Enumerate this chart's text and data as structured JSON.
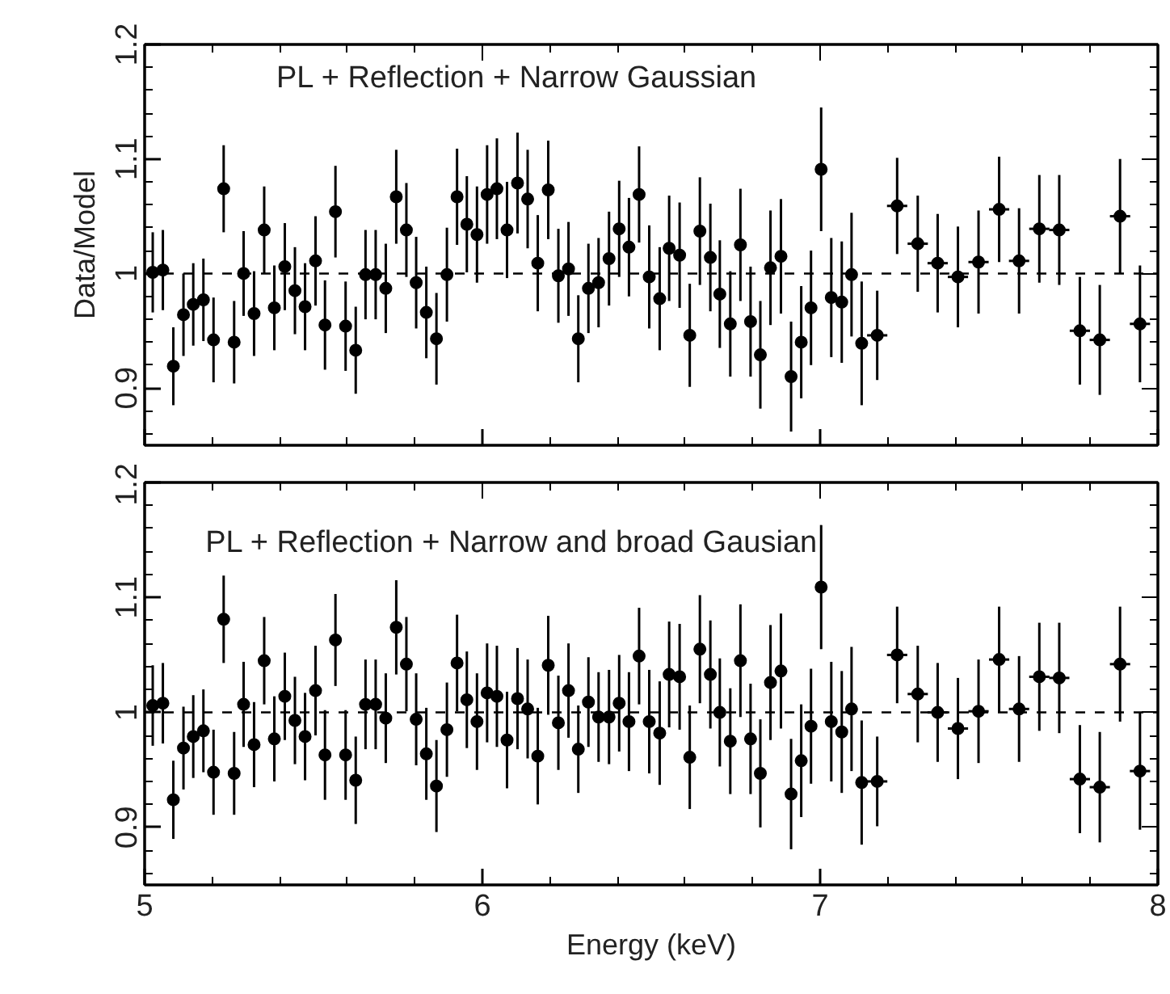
{
  "chart_data": [
    {
      "type": "scatter",
      "ylabel": "Data/Model",
      "annotations": [
        "PL + Reflection + Narrow Gaussian"
      ],
      "x": [
        5.024,
        5.054,
        5.085,
        5.115,
        5.144,
        5.174,
        5.204,
        5.234,
        5.265,
        5.293,
        5.324,
        5.354,
        5.384,
        5.415,
        5.445,
        5.475,
        5.506,
        5.534,
        5.565,
        5.595,
        5.625,
        5.654,
        5.684,
        5.714,
        5.745,
        5.775,
        5.804,
        5.834,
        5.864,
        5.895,
        5.925,
        5.954,
        5.984,
        6.014,
        6.043,
        6.073,
        6.104,
        6.134,
        6.164,
        6.195,
        6.225,
        6.255,
        6.284,
        6.314,
        6.344,
        6.375,
        6.405,
        6.434,
        6.464,
        6.494,
        6.525,
        6.553,
        6.584,
        6.614,
        6.644,
        6.675,
        6.703,
        6.734,
        6.764,
        6.794,
        6.823,
        6.853,
        6.884,
        6.914,
        6.944,
        6.973,
        7.003,
        7.033,
        7.064,
        7.093,
        7.123,
        7.169,
        7.228,
        7.289,
        7.348,
        7.408,
        7.469,
        7.53,
        7.589,
        7.649,
        7.708,
        7.769,
        7.828,
        7.888,
        7.947
      ],
      "series": [
        {
          "color": "#000000",
          "values": [
            1.001,
            1.003,
            0.919,
            0.964,
            0.973,
            0.977,
            0.942,
            1.074,
            0.94,
            1.0,
            0.965,
            1.038,
            0.97,
            1.006,
            0.985,
            0.971,
            1.011,
            0.955,
            1.054,
            0.954,
            0.933,
            0.999,
            0.999,
            0.987,
            1.067,
            1.038,
            0.992,
            0.966,
            0.943,
            0.999,
            1.067,
            1.043,
            1.034,
            1.069,
            1.074,
            1.038,
            1.079,
            1.065,
            1.009,
            1.073,
            0.998,
            1.004,
            0.943,
            0.987,
            0.992,
            1.013,
            1.039,
            1.023,
            1.069,
            0.997,
            0.978,
            1.022,
            1.016,
            0.946,
            1.037,
            1.014,
            0.982,
            0.956,
            1.025,
            0.958,
            0.929,
            1.005,
            1.015,
            0.91,
            0.94,
            0.97,
            1.091,
            0.979,
            0.975,
            0.999,
            0.939,
            0.946,
            1.059,
            1.026,
            1.009,
            0.997,
            1.01,
            1.056,
            1.011,
            1.039,
            1.038,
            0.95,
            0.942,
            1.05,
            0.956
          ],
          "errors": [
            0.035,
            0.035,
            0.034,
            0.036,
            0.036,
            0.036,
            0.037,
            0.038,
            0.036,
            0.037,
            0.037,
            0.038,
            0.037,
            0.038,
            0.038,
            0.038,
            0.039,
            0.039,
            0.04,
            0.039,
            0.038,
            0.039,
            0.039,
            0.039,
            0.041,
            0.041,
            0.04,
            0.04,
            0.04,
            0.041,
            0.042,
            0.042,
            0.042,
            0.043,
            0.044,
            0.042,
            0.044,
            0.043,
            0.042,
            0.043,
            0.041,
            0.041,
            0.038,
            0.039,
            0.039,
            0.041,
            0.042,
            0.043,
            0.042,
            0.045,
            0.045,
            0.046,
            0.046,
            0.045,
            0.047,
            0.047,
            0.047,
            0.046,
            0.049,
            0.048,
            0.047,
            0.05,
            0.05,
            0.048,
            0.049,
            0.05,
            0.054,
            0.052,
            0.053,
            0.054,
            0.054,
            0.039,
            0.042,
            0.042,
            0.043,
            0.044,
            0.045,
            0.046,
            0.046,
            0.047,
            0.048,
            0.047,
            0.048,
            0.05,
            0.051
          ],
          "xerrors": [
            null,
            null,
            null,
            null,
            null,
            null,
            null,
            null,
            null,
            null,
            null,
            null,
            null,
            null,
            null,
            null,
            null,
            null,
            null,
            null,
            null,
            null,
            null,
            null,
            null,
            null,
            null,
            null,
            null,
            null,
            null,
            null,
            null,
            null,
            null,
            null,
            null,
            null,
            null,
            null,
            null,
            null,
            null,
            null,
            null,
            null,
            null,
            null,
            null,
            null,
            null,
            null,
            null,
            null,
            null,
            null,
            null,
            null,
            null,
            null,
            null,
            null,
            null,
            null,
            null,
            null,
            null,
            null,
            null,
            null,
            null,
            0.03,
            0.03,
            0.03,
            0.03,
            0.03,
            0.03,
            0.03,
            0.03,
            0.03,
            0.03,
            0.03,
            0.03,
            0.03,
            0.03
          ]
        }
      ],
      "xlim": [
        5,
        8
      ],
      "ylim": [
        0.85,
        1.2
      ],
      "xticks": [
        5,
        6,
        7,
        8
      ],
      "yticks": [
        0.9,
        1,
        1.1,
        1.2
      ],
      "ref_lines": [
        {
          "axis": "y",
          "value": 1,
          "line_style": "dashed"
        }
      ],
      "marker": "circle",
      "grid": false,
      "tick_labels": "y"
    },
    {
      "type": "scatter",
      "xlabel": "Energy (keV)",
      "annotations": [
        "PL + Reflection + Narrow and broad Gausian"
      ],
      "x": [
        5.024,
        5.054,
        5.085,
        5.115,
        5.144,
        5.174,
        5.204,
        5.234,
        5.265,
        5.293,
        5.324,
        5.354,
        5.384,
        5.415,
        5.445,
        5.475,
        5.506,
        5.534,
        5.565,
        5.595,
        5.625,
        5.654,
        5.684,
        5.714,
        5.745,
        5.775,
        5.804,
        5.834,
        5.864,
        5.895,
        5.925,
        5.954,
        5.984,
        6.014,
        6.043,
        6.073,
        6.104,
        6.134,
        6.164,
        6.195,
        6.225,
        6.255,
        6.284,
        6.314,
        6.344,
        6.375,
        6.405,
        6.434,
        6.464,
        6.494,
        6.525,
        6.553,
        6.584,
        6.614,
        6.644,
        6.675,
        6.703,
        6.734,
        6.764,
        6.794,
        6.823,
        6.853,
        6.884,
        6.914,
        6.944,
        6.973,
        7.003,
        7.033,
        7.064,
        7.093,
        7.123,
        7.169,
        7.228,
        7.289,
        7.348,
        7.408,
        7.469,
        7.53,
        7.589,
        7.649,
        7.708,
        7.769,
        7.828,
        7.888,
        7.947
      ],
      "series": [
        {
          "color": "#000000",
          "values": [
            1.006,
            1.008,
            0.924,
            0.969,
            0.979,
            0.984,
            0.948,
            1.081,
            0.947,
            1.007,
            0.972,
            1.045,
            0.977,
            1.014,
            0.993,
            0.979,
            1.019,
            0.963,
            1.063,
            0.963,
            0.941,
            1.007,
            1.007,
            0.995,
            1.074,
            1.042,
            0.994,
            0.964,
            0.936,
            0.985,
            1.043,
            1.011,
            0.992,
            1.017,
            1.014,
            0.976,
            1.012,
            1.003,
            0.962,
            1.041,
            0.991,
            1.019,
            0.968,
            1.009,
            0.996,
            0.996,
            1.008,
            0.992,
            1.049,
            0.992,
            0.982,
            1.033,
            1.031,
            0.961,
            1.055,
            1.033,
            1.0,
            0.975,
            1.045,
            0.977,
            0.947,
            1.026,
            1.036,
            0.929,
            0.958,
            0.988,
            1.109,
            0.992,
            0.983,
            1.003,
            0.939,
            0.94,
            1.05,
            1.016,
            1.0,
            0.986,
            1.001,
            1.046,
            1.003,
            1.031,
            1.03,
            0.942,
            0.935,
            1.042,
            0.949
          ],
          "errors": [
            0.035,
            0.035,
            0.034,
            0.036,
            0.036,
            0.036,
            0.037,
            0.038,
            0.036,
            0.037,
            0.037,
            0.038,
            0.037,
            0.038,
            0.038,
            0.038,
            0.039,
            0.039,
            0.04,
            0.039,
            0.038,
            0.039,
            0.039,
            0.039,
            0.041,
            0.041,
            0.04,
            0.04,
            0.04,
            0.041,
            0.042,
            0.042,
            0.042,
            0.043,
            0.044,
            0.042,
            0.044,
            0.043,
            0.042,
            0.043,
            0.041,
            0.041,
            0.038,
            0.039,
            0.039,
            0.041,
            0.042,
            0.043,
            0.042,
            0.045,
            0.045,
            0.046,
            0.046,
            0.045,
            0.047,
            0.047,
            0.047,
            0.046,
            0.049,
            0.048,
            0.047,
            0.05,
            0.05,
            0.048,
            0.049,
            0.05,
            0.054,
            0.052,
            0.053,
            0.054,
            0.054,
            0.039,
            0.042,
            0.042,
            0.043,
            0.044,
            0.045,
            0.046,
            0.046,
            0.047,
            0.048,
            0.047,
            0.048,
            0.05,
            0.051
          ],
          "xerrors": [
            null,
            null,
            null,
            null,
            null,
            null,
            null,
            null,
            null,
            null,
            null,
            null,
            null,
            null,
            null,
            null,
            null,
            null,
            null,
            null,
            null,
            null,
            null,
            null,
            null,
            null,
            null,
            null,
            null,
            null,
            null,
            null,
            null,
            null,
            null,
            null,
            null,
            null,
            null,
            null,
            null,
            null,
            null,
            null,
            null,
            null,
            null,
            null,
            null,
            null,
            null,
            null,
            null,
            null,
            null,
            null,
            null,
            null,
            null,
            null,
            null,
            null,
            null,
            null,
            null,
            null,
            null,
            null,
            null,
            null,
            null,
            0.03,
            0.03,
            0.03,
            0.03,
            0.03,
            0.03,
            0.03,
            0.03,
            0.03,
            0.03,
            0.03,
            0.03,
            0.03,
            0.03
          ]
        }
      ],
      "xlim": [
        5,
        8
      ],
      "ylim": [
        0.85,
        1.2
      ],
      "xticks": [
        5,
        6,
        7,
        8
      ],
      "yticks": [
        0.9,
        1,
        1.1,
        1.2
      ],
      "ref_lines": [
        {
          "axis": "y",
          "value": 1,
          "line_style": "dashed"
        }
      ],
      "marker": "circle",
      "grid": false
    }
  ]
}
